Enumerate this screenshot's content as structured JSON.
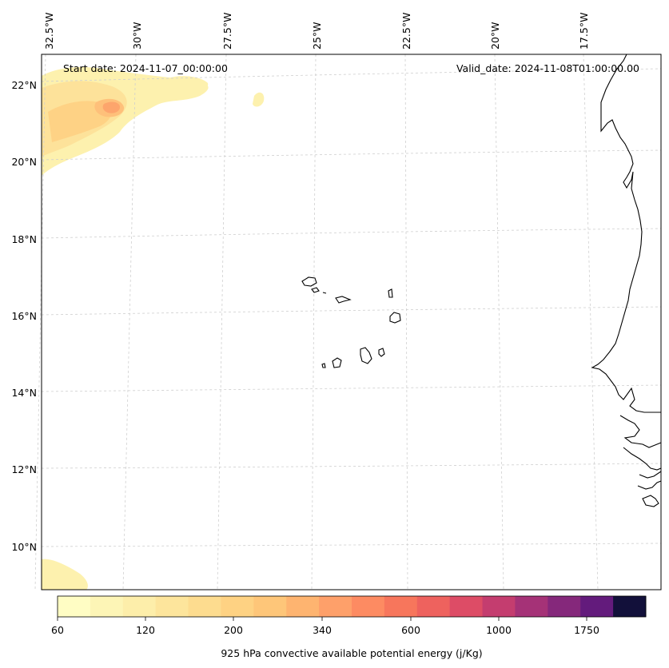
{
  "map": {
    "start_date_text": "Start date: 2024-11-07_00:00:00",
    "valid_date_text": "Valid_date: 2024-11-08T01:00:00.00",
    "lon_labels": [
      "32.5°W",
      "30°W",
      "27.5°W",
      "25°W",
      "22.5°W",
      "20°W",
      "17.5°W"
    ],
    "lat_labels": [
      "22°N",
      "20°N",
      "18°N",
      "16°N",
      "14°N",
      "12°N",
      "10°N"
    ],
    "islands": "Cape Verde islands",
    "coastline": "West African coast"
  },
  "colorbar": {
    "label": "925 hPa convective available potential energy (j/Kg)",
    "tick_labels": [
      "60",
      "120",
      "200",
      "340",
      "600",
      "1000",
      "1750"
    ],
    "colors": [
      "#fffdc4",
      "#fdf5b6",
      "#fdeeaa",
      "#fde59c",
      "#fddc8f",
      "#fed283",
      "#fec679",
      "#feb470",
      "#fea06a",
      "#fd8b62",
      "#f7765c",
      "#ee625e",
      "#dd4c66",
      "#c43d6f",
      "#a53277",
      "#85287b",
      "#631b7c",
      "#12103a"
    ]
  }
}
